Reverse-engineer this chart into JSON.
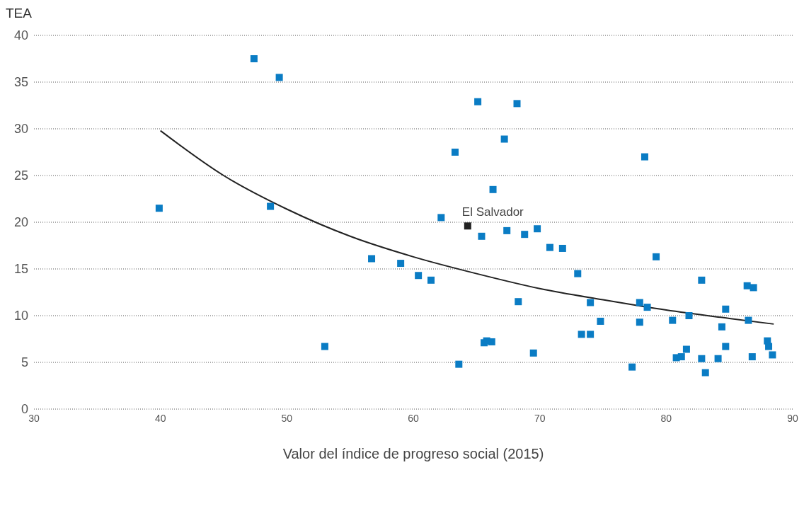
{
  "chart_data": {
    "type": "scatter",
    "ylabel": "TEA",
    "xlabel": "Valor del índice de progreso social (2015)",
    "xlim": [
      30,
      90
    ],
    "xticks": [
      30,
      40,
      50,
      60,
      70,
      80,
      90
    ],
    "ylim": [
      0,
      40
    ],
    "yticks": [
      0,
      5,
      10,
      15,
      20,
      25,
      30,
      35,
      40
    ],
    "grid": "y",
    "marker": "square",
    "annotations": [
      {
        "text": "El Salvador",
        "x": 64.3,
        "y": 19.6
      }
    ],
    "series": [
      {
        "color": "#0a7cc4",
        "x": [
          39.9,
          47.4,
          49.4,
          48.7,
          53.0,
          56.7,
          59.0,
          60.4,
          61.4,
          62.2,
          63.3,
          63.6,
          65.1,
          65.4,
          65.6,
          65.8,
          66.2,
          66.3,
          67.2,
          67.4,
          68.2,
          68.3,
          68.8,
          69.5,
          69.8,
          70.8,
          71.8,
          73.0,
          73.3,
          74.0,
          74.0,
          74.8,
          77.3,
          77.9,
          77.9,
          78.3,
          78.5,
          79.2,
          80.5,
          80.8,
          81.2,
          81.6,
          81.8,
          82.8,
          82.8,
          83.1,
          84.1,
          84.4,
          84.7,
          84.7,
          86.4,
          86.5,
          86.8,
          86.9,
          88.0,
          88.1,
          88.4
        ],
        "values": [
          21.5,
          37.5,
          35.5,
          21.7,
          6.7,
          16.1,
          15.6,
          14.3,
          13.8,
          20.5,
          27.5,
          4.8,
          32.9,
          18.5,
          7.1,
          7.3,
          7.2,
          23.5,
          28.9,
          19.1,
          32.7,
          11.5,
          18.7,
          6.0,
          19.3,
          17.3,
          17.2,
          14.5,
          8.0,
          11.4,
          8.0,
          9.4,
          4.5,
          11.4,
          9.3,
          27.0,
          10.9,
          16.3,
          9.5,
          5.5,
          5.6,
          6.4,
          10.0,
          13.8,
          5.4,
          3.9,
          5.4,
          8.8,
          10.7,
          6.7,
          13.2,
          9.5,
          5.6,
          13.0,
          7.3,
          6.7,
          5.8
        ]
      },
      {
        "color": "#222222",
        "x": [
          64.3
        ],
        "values": [
          19.6
        ]
      },
      {
        "type": "line",
        "color": "#222222",
        "marker": "none",
        "line_style": "solid",
        "x": [
          40,
          45,
          50,
          55,
          60,
          65,
          70,
          75,
          80,
          85,
          88.5
        ],
        "values": [
          29.8,
          25.0,
          21.4,
          18.5,
          16.3,
          14.5,
          12.9,
          11.7,
          10.6,
          9.7,
          9.1
        ]
      }
    ]
  }
}
